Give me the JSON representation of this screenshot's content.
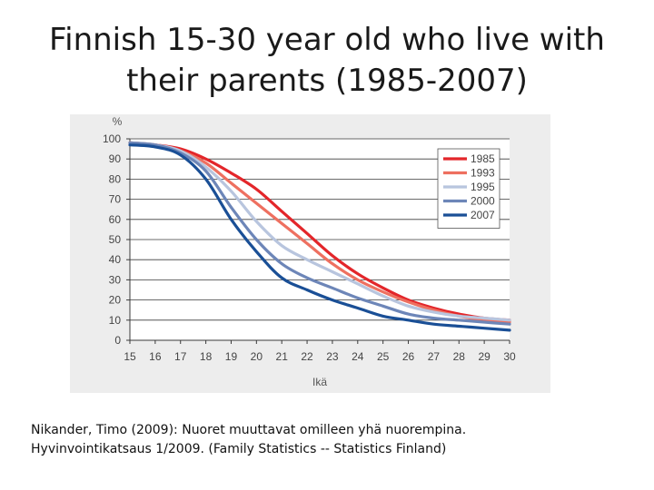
{
  "slide": {
    "title_line1": "Finnish 15-30 year old who live with",
    "title_line2": "their parents (1985-2007)"
  },
  "citation": {
    "line1": "Nikander, Timo (2009): Nuoret muuttavat omilleen yhä nuorempina.",
    "line2": "Hyvinvointikatsaus 1/2009. (Family Statistics -- Statistics Finland)"
  },
  "colors": {
    "background": "#ffffff",
    "chart_bg": "#ededed"
  },
  "chart_data": {
    "type": "line",
    "title": "",
    "xlabel": "Ikä",
    "ylabel": "%",
    "xlim": [
      15,
      30
    ],
    "ylim": [
      0,
      100
    ],
    "xticks": [
      15,
      16,
      17,
      18,
      19,
      20,
      21,
      22,
      23,
      24,
      25,
      26,
      27,
      28,
      29,
      30
    ],
    "yticks": [
      0,
      10,
      20,
      30,
      40,
      50,
      60,
      70,
      80,
      90,
      100
    ],
    "grid": "horizontal",
    "legend_position": "top-right",
    "x": [
      15,
      16,
      17,
      18,
      19,
      20,
      21,
      22,
      23,
      24,
      25,
      26,
      27,
      28,
      29,
      30
    ],
    "series": [
      {
        "name": "1985",
        "color": "#e3262a",
        "values": [
          98,
          97,
          95,
          90,
          83,
          75,
          64,
          53,
          42,
          33,
          26,
          20,
          16,
          13,
          11,
          10
        ]
      },
      {
        "name": "1993",
        "color": "#ee7060",
        "values": [
          98,
          97,
          94,
          88,
          78,
          68,
          58,
          48,
          38,
          30,
          24,
          19,
          15,
          12,
          10,
          9
        ]
      },
      {
        "name": "1995",
        "color": "#b8c5de",
        "values": [
          98,
          97,
          94,
          86,
          74,
          59,
          47,
          40,
          34,
          28,
          22,
          17,
          14,
          12,
          11,
          10
        ]
      },
      {
        "name": "2000",
        "color": "#6d86b8",
        "values": [
          98,
          97,
          93,
          84,
          66,
          50,
          38,
          31,
          26,
          21,
          17,
          13,
          11,
          10,
          9,
          8
        ]
      },
      {
        "name": "2007",
        "color": "#1a4f96",
        "values": [
          97,
          96,
          92,
          80,
          60,
          44,
          31,
          25,
          20,
          16,
          12,
          10,
          8,
          7,
          6,
          5
        ]
      }
    ]
  }
}
